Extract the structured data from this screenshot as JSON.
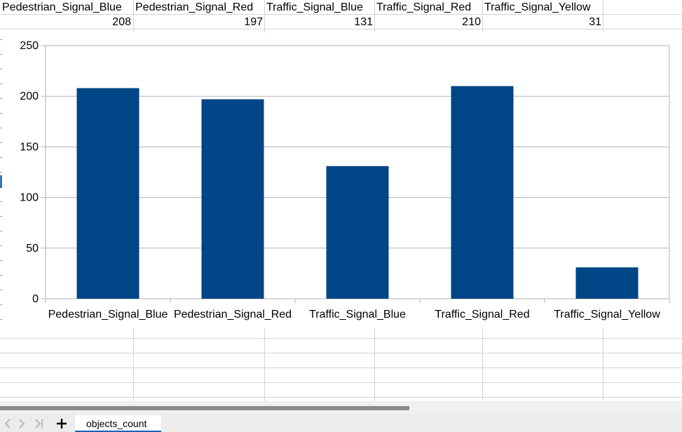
{
  "spreadsheet": {
    "header_row": [
      "Pedestrian_Signal_Blue",
      "Pedestrian_Signal_Red",
      "Traffic_Signal_Blue",
      "Traffic_Signal_Red",
      "Traffic_Signal_Yellow"
    ],
    "value_row": [
      "208",
      "197",
      "131",
      "210",
      "31"
    ]
  },
  "chart_data": {
    "type": "bar",
    "categories": [
      "Pedestrian_Signal_Blue",
      "Pedestrian_Signal_Red",
      "Traffic_Signal_Blue",
      "Traffic_Signal_Red",
      "Traffic_Signal_Yellow"
    ],
    "values": [
      208,
      197,
      131,
      210,
      31
    ],
    "title": "",
    "xlabel": "",
    "ylabel": "",
    "ylim": [
      0,
      250
    ],
    "yticks": [
      "0",
      "50",
      "100",
      "150",
      "200",
      "250"
    ],
    "grid": true,
    "legend": "none",
    "bar_color": "#004586"
  },
  "tabs": {
    "active_sheet": "objects_count"
  },
  "icons": {
    "first_sheet": "first-sheet-icon",
    "prev_sheet": "prev-sheet-icon",
    "next_sheet": "next-sheet-icon",
    "last_sheet": "last-sheet-icon",
    "add_sheet": "add-sheet-icon"
  }
}
